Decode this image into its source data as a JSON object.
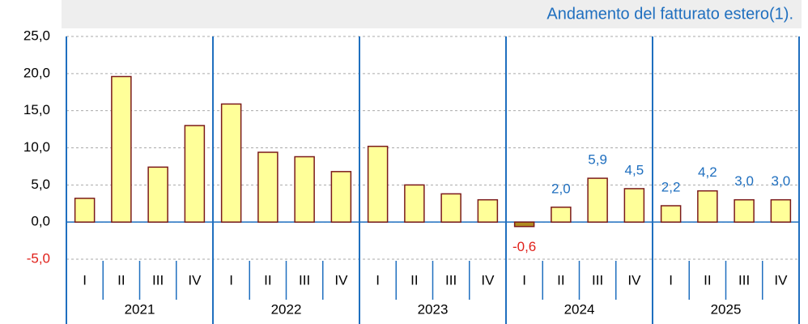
{
  "chart_data": {
    "type": "bar",
    "title": "Andamento del fatturato estero(1).",
    "categories": [
      "I",
      "II",
      "III",
      "IV",
      "I",
      "II",
      "III",
      "IV",
      "I",
      "II",
      "III",
      "IV",
      "I",
      "II",
      "III",
      "IV",
      "I",
      "II",
      "III",
      "IV"
    ],
    "groups": [
      "2021",
      "2022",
      "2023",
      "2024",
      "2025"
    ],
    "values": [
      3.2,
      19.6,
      7.4,
      13.0,
      15.9,
      9.4,
      8.8,
      6.8,
      10.2,
      5.0,
      3.8,
      3.0,
      -0.6,
      2.0,
      5.9,
      4.5,
      2.2,
      4.2,
      3.0,
      3.0
    ],
    "value_labels": [
      null,
      null,
      null,
      null,
      null,
      null,
      null,
      null,
      null,
      null,
      null,
      null,
      "-0,6",
      "2,0",
      "5,9",
      "4,5",
      "2,2",
      "4,2",
      "3,0",
      "3,0"
    ],
    "color": "#ffff99",
    "negative_color": "#b08a20",
    "ylim": [
      -5,
      25
    ],
    "yticks": [
      {
        "value": -5,
        "label": "-5,0"
      },
      {
        "value": 0,
        "label": "0,0"
      },
      {
        "value": 5,
        "label": "5,0"
      },
      {
        "value": 10,
        "label": "10,0"
      },
      {
        "value": 15,
        "label": "15,0"
      },
      {
        "value": 20,
        "label": "20,0"
      },
      {
        "value": 25,
        "label": "25,0"
      }
    ],
    "grid": true
  }
}
